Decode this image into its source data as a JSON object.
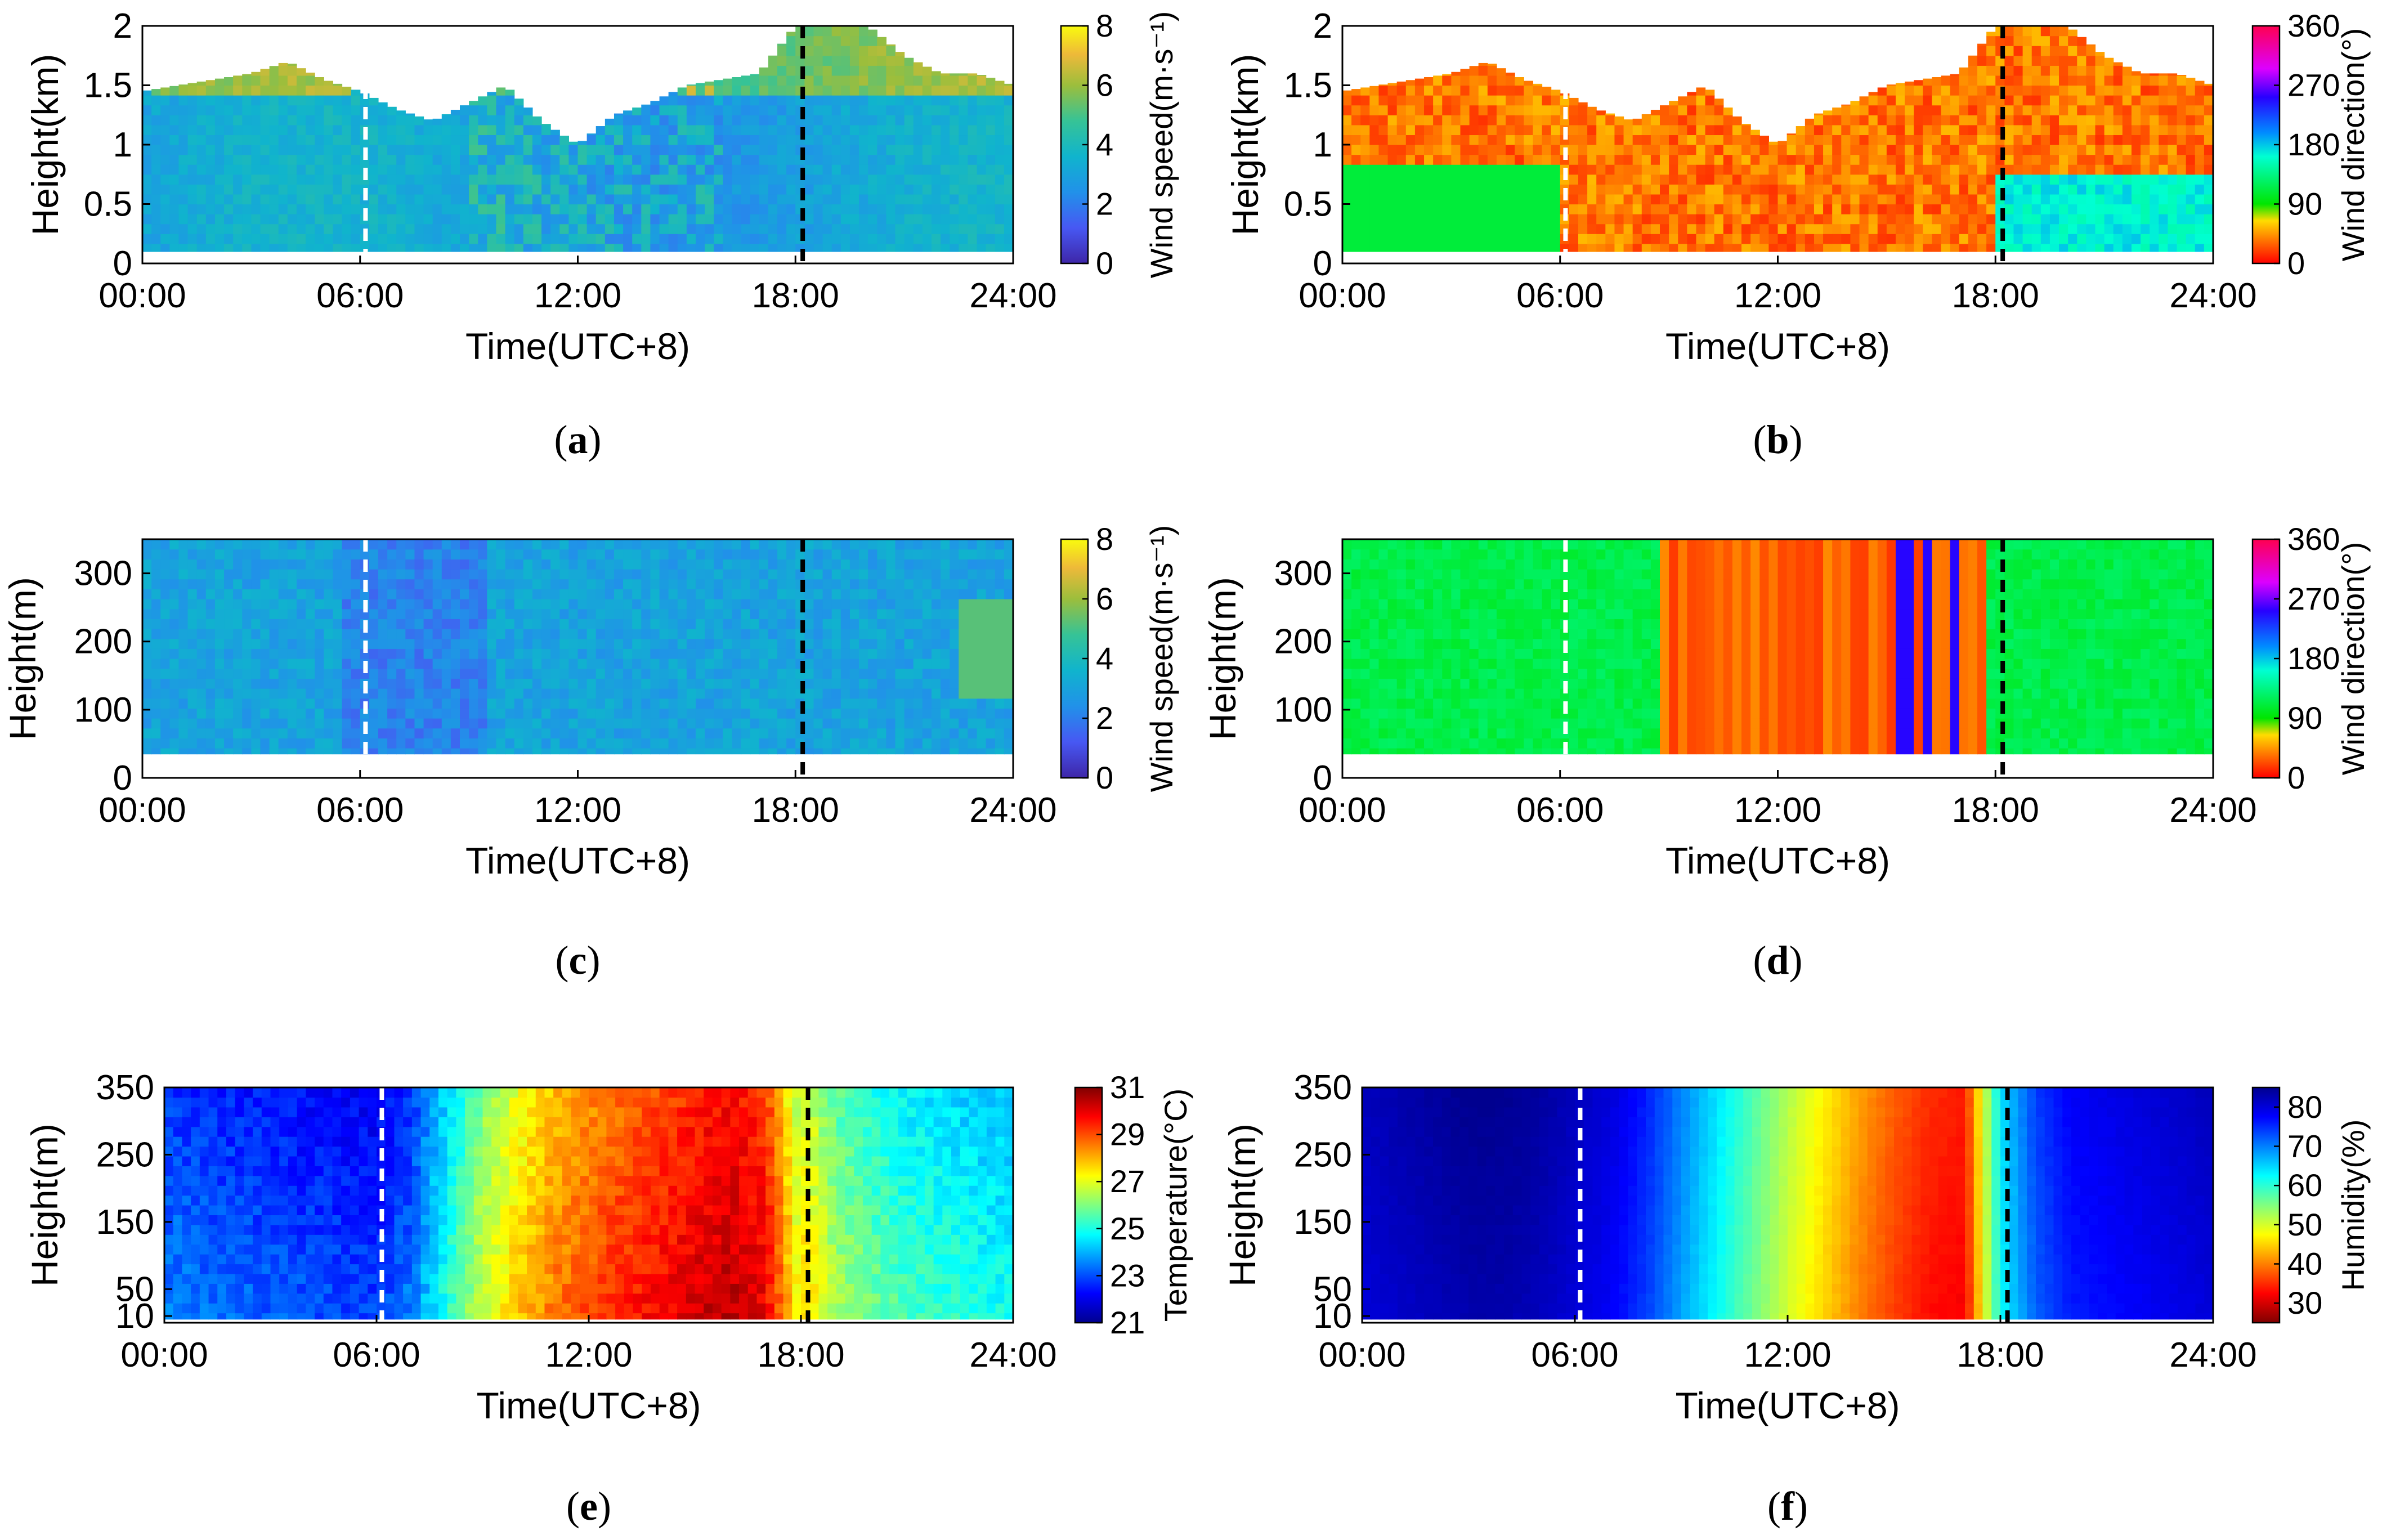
{
  "colors": {
    "white_marker": "#ffffff",
    "black_marker": "#000000",
    "frame": "#000000"
  },
  "chart_data": [
    {
      "id": "a",
      "type": "heatmap",
      "caption": "a",
      "xlabel": "Time(UTC+8)",
      "ylabel": "Height(km)",
      "x_ticks": [
        "00:00",
        "06:00",
        "12:00",
        "18:00",
        "24:00"
      ],
      "y_ticks": [
        "0",
        "0.5",
        "1",
        "1.5",
        "2"
      ],
      "xlim": [
        0,
        24
      ],
      "ylim": [
        0,
        2
      ],
      "colorbar_label": "Wind speed(m·s⁻¹)",
      "colorbar_ticks": [
        "0",
        "2",
        "4",
        "6",
        "8"
      ],
      "colormap": "parula",
      "clim": [
        0,
        8
      ],
      "sunrise_marker_hour": 6.15,
      "sunset_marker_hour": 18.2,
      "data_top_km": [
        1.45,
        1.5,
        1.55,
        1.6,
        1.7,
        1.55,
        1.45,
        1.3,
        1.2,
        1.35,
        1.5,
        1.2,
        1.0,
        1.25,
        1.35,
        1.5,
        1.55,
        1.6,
        2.0,
        2.0,
        2.0,
        1.75,
        1.6,
        1.6,
        1.5
      ]
    },
    {
      "id": "b",
      "type": "heatmap",
      "caption": "b",
      "xlabel": "Time(UTC+8)",
      "ylabel": "Height(km)",
      "x_ticks": [
        "00:00",
        "06:00",
        "12:00",
        "18:00",
        "24:00"
      ],
      "y_ticks": [
        "0",
        "0.5",
        "1",
        "1.5",
        "2"
      ],
      "xlim": [
        0,
        24
      ],
      "ylim": [
        0,
        2
      ],
      "colorbar_label": "Wind direction(°)",
      "colorbar_ticks": [
        "0",
        "90",
        "180",
        "270",
        "360"
      ],
      "colormap": "hsv",
      "clim": [
        0,
        360
      ],
      "sunrise_marker_hour": 6.15,
      "sunset_marker_hour": 18.2,
      "data_top_km": [
        1.45,
        1.5,
        1.55,
        1.6,
        1.7,
        1.55,
        1.45,
        1.3,
        1.2,
        1.35,
        1.5,
        1.2,
        1.0,
        1.25,
        1.35,
        1.5,
        1.55,
        1.6,
        2.0,
        2.0,
        2.0,
        1.75,
        1.6,
        1.6,
        1.5
      ]
    },
    {
      "id": "c",
      "type": "heatmap",
      "caption": "c",
      "xlabel": "Time(UTC+8)",
      "ylabel": "Height(m)",
      "x_ticks": [
        "00:00",
        "06:00",
        "12:00",
        "18:00",
        "24:00"
      ],
      "y_ticks": [
        "0",
        "100",
        "200",
        "300"
      ],
      "xlim": [
        0,
        24
      ],
      "ylim": [
        0,
        350
      ],
      "colorbar_label": "Wind speed(m·s⁻¹)",
      "colorbar_ticks": [
        "0",
        "2",
        "4",
        "6",
        "8"
      ],
      "colormap": "parula",
      "clim": [
        0,
        8
      ],
      "sunrise_marker_hour": 6.15,
      "sunset_marker_hour": 18.2,
      "data_bottom_m": 35
    },
    {
      "id": "d",
      "type": "heatmap",
      "caption": "d",
      "xlabel": "Time(UTC+8)",
      "ylabel": "Height(m)",
      "x_ticks": [
        "00:00",
        "06:00",
        "12:00",
        "18:00",
        "24:00"
      ],
      "y_ticks": [
        "0",
        "100",
        "200",
        "300"
      ],
      "xlim": [
        0,
        24
      ],
      "ylim": [
        0,
        350
      ],
      "colorbar_label": "Wind direction(°)",
      "colorbar_ticks": [
        "0",
        "90",
        "180",
        "270",
        "360"
      ],
      "colormap": "hsv",
      "clim": [
        0,
        360
      ],
      "sunrise_marker_hour": 6.15,
      "sunset_marker_hour": 18.2,
      "data_bottom_m": 35
    },
    {
      "id": "e",
      "type": "heatmap",
      "caption": "e",
      "xlabel": "Time(UTC+8)",
      "ylabel": "Height(m)",
      "x_ticks": [
        "00:00",
        "06:00",
        "12:00",
        "18:00",
        "24:00"
      ],
      "y_ticks": [
        "10",
        "50",
        "150",
        "250",
        "350"
      ],
      "y_tick_values": [
        10,
        50,
        150,
        250,
        350
      ],
      "xlim": [
        0,
        24
      ],
      "ylim": [
        0,
        350
      ],
      "colorbar_label": "Temperature(°C)",
      "colorbar_ticks": [
        "21",
        "23",
        "25",
        "27",
        "29",
        "31"
      ],
      "colormap": "jet",
      "clim": [
        21,
        31
      ],
      "sunrise_marker_hour": 6.15,
      "sunset_marker_hour": 18.2,
      "hourly_values": [
        23.6,
        23.4,
        23.3,
        23.2,
        23.1,
        23.0,
        22.9,
        23.5,
        25.2,
        26.8,
        27.8,
        28.6,
        29.1,
        29.5,
        29.8,
        30.2,
        30.5,
        30.0,
        27.0,
        25.6,
        25.0,
        24.6,
        24.4,
        24.2,
        24.0
      ]
    },
    {
      "id": "f",
      "type": "heatmap",
      "caption": "f",
      "xlabel": "Time(UTC+8)",
      "ylabel": "Height(m)",
      "x_ticks": [
        "00:00",
        "06:00",
        "12:00",
        "18:00",
        "24:00"
      ],
      "y_ticks": [
        "10",
        "50",
        "150",
        "250",
        "350"
      ],
      "y_tick_values": [
        10,
        50,
        150,
        250,
        350
      ],
      "xlim": [
        0,
        24
      ],
      "ylim": [
        0,
        350
      ],
      "colorbar_label": "Humidity(%)",
      "colorbar_ticks": [
        "30",
        "40",
        "50",
        "60",
        "70",
        "80"
      ],
      "colormap": "jet_reversed",
      "clim": [
        25,
        85
      ],
      "sunrise_marker_hour": 6.15,
      "sunset_marker_hour": 18.2,
      "hourly_values": [
        80,
        81,
        82,
        83,
        83,
        82,
        80,
        78,
        74,
        68,
        62,
        56,
        50,
        45,
        40,
        36,
        33,
        32,
        62,
        72,
        76,
        77,
        78,
        79,
        80
      ]
    }
  ]
}
